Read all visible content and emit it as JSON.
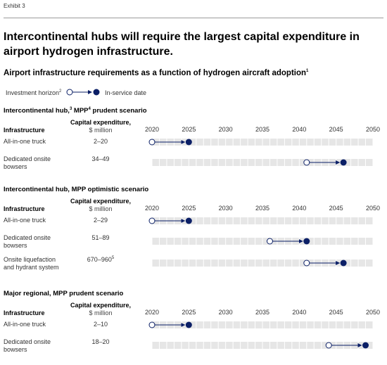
{
  "exhibit": "Exhibit 3",
  "title": "Intercontinental hubs will require the largest capital expenditure in airport hydrogen infrastructure.",
  "subtitle": "Airport infrastructure requirements as a function of hydrogen aircraft adoption",
  "subtitle_note": "1",
  "legend": {
    "start_label": "Investment horizon",
    "start_note": "2",
    "end_label": "In-service date"
  },
  "colors": {
    "navy": "#0b1f66",
    "track": "#e6e6e6",
    "rule": "#9a9a9a"
  },
  "chart_data": {
    "type": "timeline",
    "xlim": [
      2020,
      2050
    ],
    "year_ticks": [
      "2020",
      "2025",
      "2030",
      "2035",
      "2040",
      "2045",
      "2050"
    ],
    "infra_header": "Infrastructure",
    "capex_header": "Capital expenditure,",
    "capex_unit": "$ million",
    "sections": [
      {
        "title": "Intercontinental hub,",
        "title_note": "3",
        "title_rest": " MPP",
        "title_note2": "4",
        "title_end": " prudent scenario",
        "rows": [
          {
            "label": "All-in-one truck",
            "capex": "2–20",
            "start": 2020,
            "end": 2025
          },
          {
            "label": "Dedicated onsite bowsers",
            "capex": "34–49",
            "start": 2041,
            "end": 2046
          }
        ]
      },
      {
        "title": "Intercontinental hub, MPP optimistic scenario",
        "title_note": "",
        "title_rest": "",
        "title_note2": "",
        "title_end": "",
        "rows": [
          {
            "label": "All-in-one truck",
            "capex": "2–29",
            "start": 2020,
            "end": 2025
          },
          {
            "label": "Dedicated onsite bowsers",
            "capex": "51–89",
            "start": 2036,
            "end": 2041
          },
          {
            "label": "Onsite liquefaction and hydrant system",
            "capex": "670–960",
            "capex_note": "5",
            "start": 2041,
            "end": 2046
          }
        ]
      },
      {
        "title": "Major regional, MPP prudent scenario",
        "title_note": "",
        "title_rest": "",
        "title_note2": "",
        "title_end": "",
        "rows": [
          {
            "label": "All-in-one truck",
            "capex": "2–10",
            "start": 2020,
            "end": 2025
          },
          {
            "label": "Dedicated onsite bowsers",
            "capex": "18–20",
            "start": 2044,
            "end": 2049
          }
        ]
      }
    ]
  }
}
